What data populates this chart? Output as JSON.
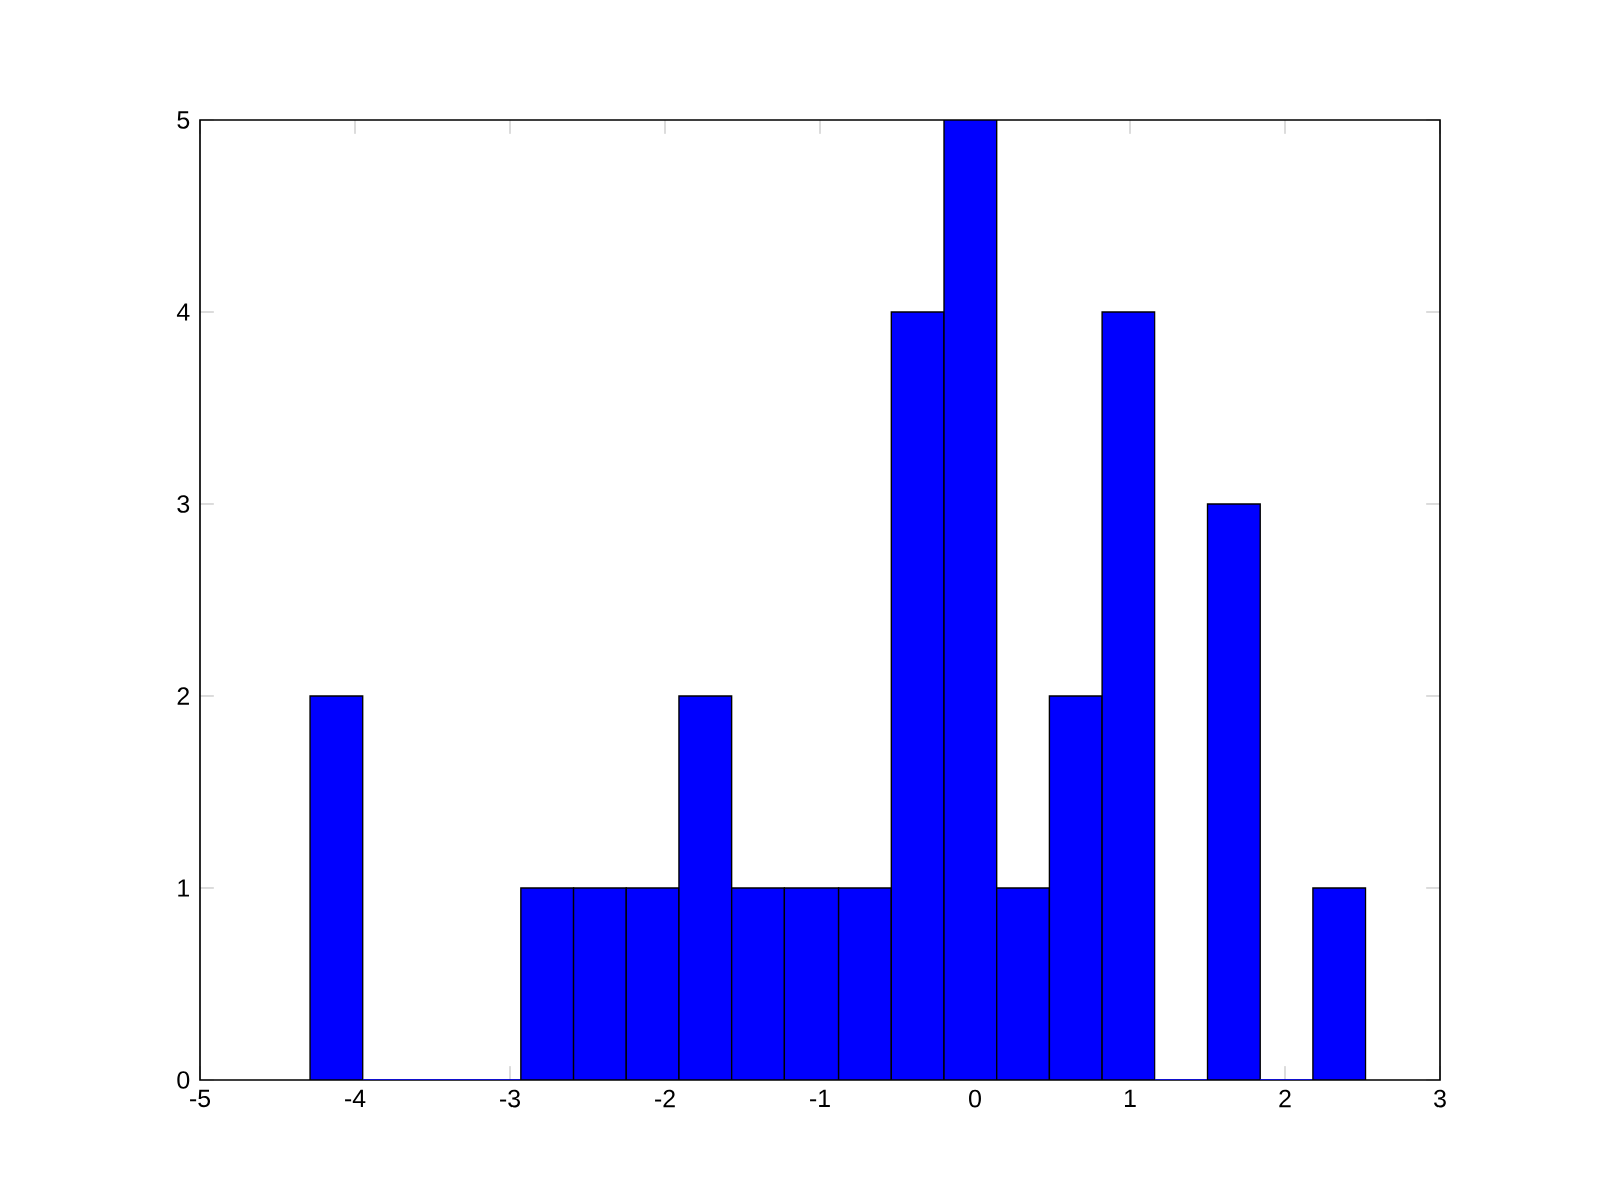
{
  "chart_data": {
    "type": "histogram",
    "bins": [
      -4.29,
      -3.95,
      -2.93,
      -2.59,
      -2.25,
      -1.91,
      -1.57,
      -1.23,
      -0.88,
      -0.54,
      -0.2,
      0.14,
      0.48,
      0.82,
      1.16,
      1.5,
      1.84,
      2.18,
      2.52
    ],
    "values": [
      2,
      0,
      1,
      1,
      1,
      2,
      1,
      1,
      1,
      4,
      5,
      1,
      2,
      4,
      0,
      3,
      0,
      1
    ],
    "color": "#0000ff",
    "xlim": [
      -5,
      3
    ],
    "ylim": [
      0,
      5
    ],
    "xticks": [
      -5,
      -4,
      -3,
      -2,
      -1,
      0,
      1,
      2,
      3
    ],
    "yticks": [
      0,
      1,
      2,
      3,
      4,
      5
    ],
    "grid": false
  }
}
